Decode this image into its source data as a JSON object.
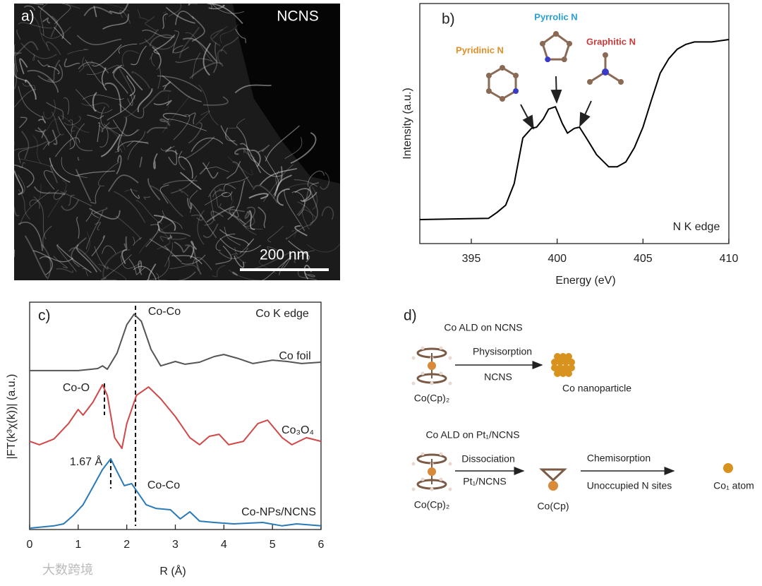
{
  "image": {
    "label": "a)",
    "title": "NCNS",
    "scale_bar": "200 nm"
  },
  "chart_data": [
    {
      "type": "line",
      "label": "b)",
      "x_label": "Energy (eV)",
      "y_label": "Intensity (a.u.)",
      "annotations": [
        "Pyridinic N",
        "Pyrrolic N",
        "Graphitic N"
      ],
      "edge_label": "N K edge",
      "xlim": [
        392,
        410
      ],
      "xticks": [
        395,
        400,
        405,
        410
      ],
      "ylim": [
        0,
        1
      ],
      "color": "#000000",
      "x": [
        392,
        396,
        396.5,
        397,
        397.5,
        398,
        398.5,
        398.8,
        399.2,
        399.5,
        399.9,
        400.3,
        400.6,
        401,
        401.3,
        401.7,
        402.3,
        403,
        403.5,
        404,
        404.5,
        405,
        405.5,
        406,
        406.5,
        407,
        407.5,
        408,
        409,
        410
      ],
      "values": [
        0.1,
        0.105,
        0.13,
        0.16,
        0.25,
        0.44,
        0.48,
        0.485,
        0.52,
        0.56,
        0.57,
        0.5,
        0.46,
        0.48,
        0.485,
        0.44,
        0.37,
        0.32,
        0.32,
        0.34,
        0.4,
        0.485,
        0.6,
        0.71,
        0.77,
        0.81,
        0.83,
        0.84,
        0.84,
        0.85
      ]
    },
    {
      "type": "line",
      "label": "c)",
      "title": "Co K edge",
      "x_label": "R (Å)",
      "y_label": "|FT(k³χ(k))| (a.u.)",
      "annotations": [
        "Co-Co",
        "Co-O",
        "1.67 Å",
        "Co-Co"
      ],
      "reference_lines": [
        2.18,
        1.54,
        1.67
      ],
      "xlim": [
        0,
        6
      ],
      "xticks": [
        0,
        1,
        2,
        3,
        4,
        5,
        6
      ],
      "ylim": [
        0,
        1
      ],
      "series": [
        {
          "name": "Co foil",
          "color": "#555555",
          "x": [
            0,
            1,
            1.4,
            1.5,
            1.6,
            1.8,
            2.0,
            2.15,
            2.3,
            2.5,
            2.7,
            3.0,
            3.2,
            3.5,
            3.8,
            4.0,
            4.3,
            4.6,
            5.0,
            5.3,
            5.6,
            6.0
          ],
          "values": [
            0.699,
            0.699,
            0.708,
            0.72,
            0.705,
            0.776,
            0.901,
            0.947,
            0.916,
            0.792,
            0.72,
            0.739,
            0.727,
            0.736,
            0.761,
            0.77,
            0.752,
            0.73,
            0.745,
            0.739,
            0.73,
            0.736
          ]
        },
        {
          "name": "Co₃O₄",
          "color": "#d04848",
          "x": [
            0,
            0.2,
            0.5,
            0.8,
            1.0,
            1.1,
            1.3,
            1.5,
            1.6,
            1.75,
            1.9,
            2.0,
            2.2,
            2.45,
            2.7,
            3.0,
            3.3,
            3.5,
            3.7,
            3.9,
            4.1,
            4.4,
            4.7,
            4.9,
            5.2,
            5.4,
            5.7,
            6.0
          ],
          "values": [
            0.388,
            0.373,
            0.398,
            0.466,
            0.528,
            0.503,
            0.559,
            0.637,
            0.59,
            0.404,
            0.357,
            0.466,
            0.59,
            0.627,
            0.575,
            0.497,
            0.404,
            0.373,
            0.41,
            0.419,
            0.373,
            0.388,
            0.466,
            0.481,
            0.404,
            0.373,
            0.404,
            0.388
          ]
        },
        {
          "name": "Co-NPs/NCNS",
          "color": "#2a7ab8",
          "x": [
            0,
            0.3,
            0.5,
            0.7,
            0.9,
            1.1,
            1.3,
            1.5,
            1.67,
            1.8,
            1.95,
            2.1,
            2.2,
            2.4,
            2.6,
            2.9,
            3.1,
            3.3,
            3.5,
            3.8,
            4.2,
            4.8,
            5.2,
            5.5,
            6.0
          ],
          "values": [
            0.006,
            0.012,
            0.016,
            0.025,
            0.062,
            0.109,
            0.186,
            0.264,
            0.311,
            0.255,
            0.193,
            0.202,
            0.171,
            0.109,
            0.093,
            0.087,
            0.047,
            0.078,
            0.037,
            0.031,
            0.025,
            0.031,
            0.016,
            0.025,
            0.016
          ]
        }
      ]
    }
  ],
  "diagram": {
    "label": "d)",
    "route1": {
      "title": "Co ALD on NCNS",
      "precursor": "Co(Cp)₂",
      "step": "Physisorption",
      "support": "NCNS",
      "product": "Co nanoparticle"
    },
    "route2": {
      "title": "Co ALD on Pt₁/NCNS",
      "precursor": "Co(Cp)₂",
      "step1": "Dissociation",
      "support": "Pt₁/NCNS",
      "intermediate": "Co(Cp)",
      "step2": "Chemisorption",
      "sites": "Unoccupied N sites",
      "product": "Co₁ atom"
    }
  },
  "watermark": "大数跨境"
}
